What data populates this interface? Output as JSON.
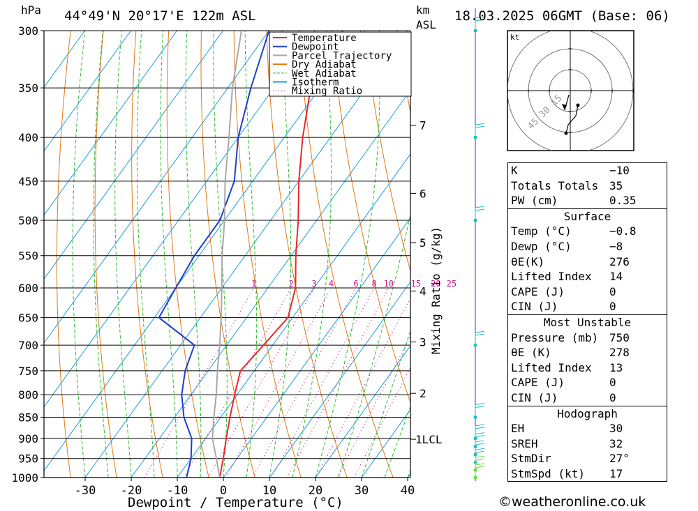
{
  "header": {
    "pressure_unit": "hPa",
    "location": "44°49'N  20°17'E  122m  ASL",
    "height_unit": "km",
    "height_unit2": "ASL",
    "datetime": "18.03.2025  06GMT  (Base: 06)"
  },
  "chart_data": {
    "type": "line",
    "subtype": "skew-t log-p diagram",
    "xlabel": "Dewpoint / Temperature (°C)",
    "ylabel": "hPa",
    "right_axis_label": "km ASL",
    "xlim": [
      -40,
      40
    ],
    "ylim": [
      1000,
      300
    ],
    "y_scale": "log",
    "x_ticks": [
      -30,
      -20,
      -10,
      0,
      10,
      20,
      30,
      40
    ],
    "pressure_levels": [
      300,
      350,
      400,
      450,
      500,
      550,
      600,
      650,
      700,
      750,
      800,
      850,
      900,
      950,
      1000
    ],
    "height_ticks": [
      {
        "label": "7",
        "p": 387
      },
      {
        "label": "6",
        "p": 465
      },
      {
        "label": "5",
        "p": 531
      },
      {
        "label": "4",
        "p": 605
      },
      {
        "label": "3",
        "p": 694
      },
      {
        "label": "2",
        "p": 797
      },
      {
        "label": "1LCL",
        "p": 902
      }
    ],
    "legend": {
      "position": "top",
      "entries": [
        {
          "name": "Temperature",
          "color": "#e8282c",
          "style": "solid"
        },
        {
          "name": "Dewpoint",
          "color": "#1c3fd0",
          "style": "solid"
        },
        {
          "name": "Parcel Trajectory",
          "color": "#a8a8a8",
          "style": "solid"
        },
        {
          "name": "Dry Adiabat",
          "color": "#e07a12",
          "style": "solid"
        },
        {
          "name": "Wet Adiabat",
          "color": "#2fbf2f",
          "style": "dashed"
        },
        {
          "name": "Isotherm",
          "color": "#1e9be0",
          "style": "solid"
        },
        {
          "name": "Mixing Ratio",
          "color": "#c8158f",
          "style": "dotted"
        }
      ]
    },
    "mixing_ratio_label": "Mixing Ratio (g/kg)",
    "mixing_ratio_values": [
      "1",
      "2",
      "3",
      "4",
      "6",
      "8",
      "10",
      "15",
      "20",
      "25"
    ],
    "series": [
      {
        "name": "Temperature",
        "points": [
          {
            "p": 1000,
            "t": -0.8
          },
          {
            "p": 950,
            "t": -3
          },
          {
            "p": 900,
            "t": -5.5
          },
          {
            "p": 850,
            "t": -8
          },
          {
            "p": 800,
            "t": -10.5
          },
          {
            "p": 750,
            "t": -13
          },
          {
            "p": 700,
            "t": -12
          },
          {
            "p": 650,
            "t": -11
          },
          {
            "p": 600,
            "t": -14
          },
          {
            "p": 550,
            "t": -19
          },
          {
            "p": 500,
            "t": -24
          },
          {
            "p": 450,
            "t": -30
          },
          {
            "p": 400,
            "t": -36
          },
          {
            "p": 350,
            "t": -42
          },
          {
            "p": 300,
            "t": -44
          }
        ]
      },
      {
        "name": "Dewpoint",
        "points": [
          {
            "p": 1000,
            "t": -8
          },
          {
            "p": 950,
            "t": -10
          },
          {
            "p": 900,
            "t": -13
          },
          {
            "p": 850,
            "t": -18
          },
          {
            "p": 800,
            "t": -22
          },
          {
            "p": 750,
            "t": -25
          },
          {
            "p": 700,
            "t": -27
          },
          {
            "p": 650,
            "t": -39
          },
          {
            "p": 600,
            "t": -40
          },
          {
            "p": 550,
            "t": -41
          },
          {
            "p": 500,
            "t": -41
          },
          {
            "p": 450,
            "t": -44
          },
          {
            "p": 400,
            "t": -50
          },
          {
            "p": 350,
            "t": -55
          },
          {
            "p": 300,
            "t": -60
          }
        ]
      },
      {
        "name": "Parcel Trajectory",
        "points": [
          {
            "p": 1000,
            "t": -0.8
          },
          {
            "p": 950,
            "t": -4.5
          },
          {
            "p": 900,
            "t": -8.5
          },
          {
            "p": 850,
            "t": -11.5
          },
          {
            "p": 800,
            "t": -14.5
          },
          {
            "p": 750,
            "t": -18
          },
          {
            "p": 700,
            "t": -21.5
          },
          {
            "p": 650,
            "t": -25.5
          },
          {
            "p": 600,
            "t": -30
          },
          {
            "p": 550,
            "t": -35
          },
          {
            "p": 500,
            "t": -40
          },
          {
            "p": 450,
            "t": -46
          },
          {
            "p": 400,
            "t": -52
          },
          {
            "p": 350,
            "t": -59
          },
          {
            "p": 300,
            "t": -66
          }
        ]
      }
    ]
  },
  "hodograph": {
    "unit": "kt",
    "ring_labels": [
      "15",
      "30",
      "45"
    ]
  },
  "indices": {
    "rows": [
      {
        "label": "K",
        "value": "-10"
      },
      {
        "label": "Totals Totals",
        "value": "35"
      },
      {
        "label": "PW (cm)",
        "value": "0.35"
      }
    ],
    "surface": {
      "title": "Surface",
      "rows": [
        {
          "label": "Temp (°C)",
          "value": "-0.8"
        },
        {
          "label": "Dewp (°C)",
          "value": "-8"
        },
        {
          "label": "θE(K)",
          "value": "276"
        },
        {
          "label": "Lifted Index",
          "value": "14"
        },
        {
          "label": "CAPE (J)",
          "value": "0"
        },
        {
          "label": "CIN (J)",
          "value": "0"
        }
      ]
    },
    "most_unstable": {
      "title": "Most Unstable",
      "rows": [
        {
          "label": "Pressure (mb)",
          "value": "750"
        },
        {
          "label": "θE (K)",
          "value": "278"
        },
        {
          "label": "Lifted Index",
          "value": "13"
        },
        {
          "label": "CAPE (J)",
          "value": "0"
        },
        {
          "label": "CIN (J)",
          "value": "0"
        }
      ]
    },
    "hodograph_section": {
      "title": "Hodograph",
      "rows": [
        {
          "label": "EH",
          "value": "30"
        },
        {
          "label": "SREH",
          "value": "32"
        },
        {
          "label": "StmDir",
          "value": "27°"
        },
        {
          "label": "StmSpd (kt)",
          "value": "17"
        }
      ]
    }
  },
  "footer": {
    "copyright": "©weatheronline.co.uk"
  }
}
